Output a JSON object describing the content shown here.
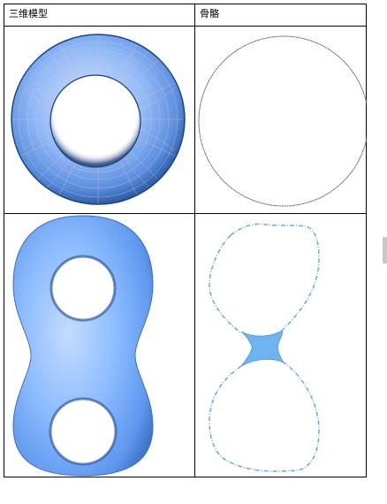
{
  "table": {
    "header": {
      "col1": "三维模型",
      "col2": "骨骼"
    },
    "rows": [
      {
        "model": "torus-3d-model",
        "skeleton": "circle-skeleton"
      },
      {
        "model": "double-torus-3d-model",
        "skeleton": "double-torus-skeleton"
      }
    ]
  },
  "colors": {
    "surface_light": "#a9cbff",
    "surface_mid": "#6aa2f4",
    "surface_dark": "#2e5ea8",
    "mesh_line": "#d8b8c8",
    "skeleton_line": "#555555",
    "skeleton_blue": "#5aa6ec"
  }
}
